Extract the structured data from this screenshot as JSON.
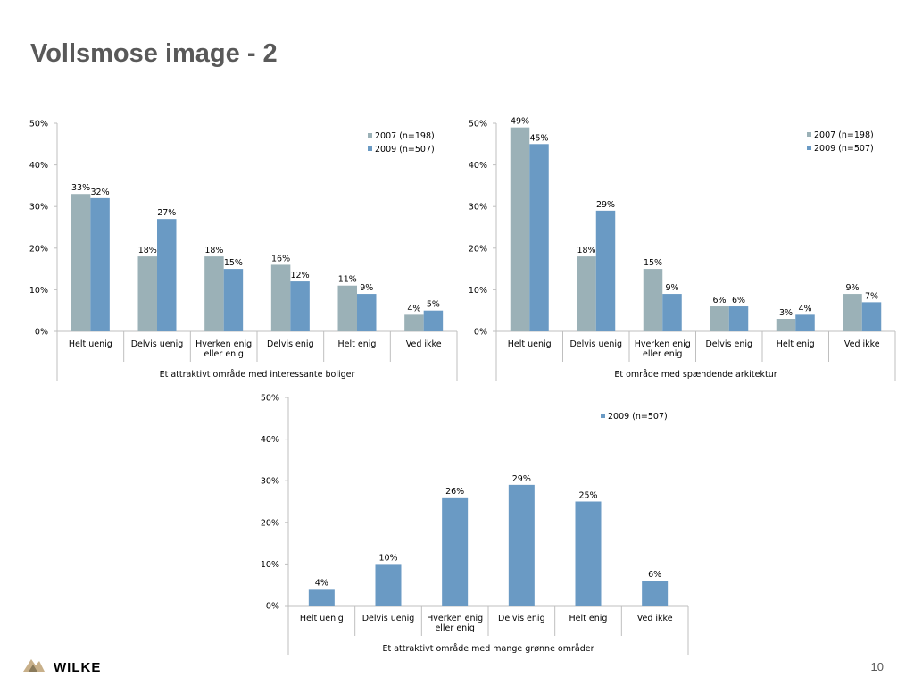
{
  "slide": {
    "title": "Vollsmose image - 2",
    "page_number": "10",
    "logo_text": "WILKE"
  },
  "colors": {
    "series_2007": "#9bb1b7",
    "series_2009": "#6a9ac4",
    "axis": "#bfbfbf",
    "text": "#000000",
    "title": "#595959"
  },
  "chart_data": [
    {
      "type": "bar",
      "title": "",
      "xlabel": "Et attraktivt område med interessante boliger",
      "ylabel": "",
      "ylim": [
        0,
        50
      ],
      "yticks": [
        "0%",
        "10%",
        "20%",
        "30%",
        "40%",
        "50%"
      ],
      "categories": [
        "Helt uenig",
        "Delvis uenig",
        "Hverken enig eller enig",
        "Delvis enig",
        "Helt enig",
        "Ved ikke"
      ],
      "series": [
        {
          "name": "2007 (n=198)",
          "values": [
            33,
            18,
            18,
            16,
            11,
            4
          ],
          "labels": [
            "33%",
            "18%",
            "18%",
            "16%",
            "11%",
            "4%"
          ]
        },
        {
          "name": "2009 (n=507)",
          "values": [
            32,
            27,
            15,
            12,
            9,
            5
          ],
          "labels": [
            "32%",
            "27%",
            "15%",
            "12%",
            "9%",
            "5%"
          ]
        }
      ],
      "legend": "top-right",
      "grid": false
    },
    {
      "type": "bar",
      "title": "",
      "xlabel": "Et område med spændende arkitektur",
      "ylabel": "",
      "ylim": [
        0,
        50
      ],
      "yticks": [
        "0%",
        "10%",
        "20%",
        "30%",
        "40%",
        "50%"
      ],
      "categories": [
        "Helt uenig",
        "Delvis uenig",
        "Hverken enig eller enig",
        "Delvis enig",
        "Helt enig",
        "Ved ikke"
      ],
      "series": [
        {
          "name": "2007 (n=198)",
          "values": [
            49,
            18,
            15,
            6,
            3,
            9
          ],
          "labels": [
            "49%",
            "18%",
            "15%",
            "6%",
            "3%",
            "9%"
          ]
        },
        {
          "name": "2009 (n=507)",
          "values": [
            45,
            29,
            9,
            6,
            4,
            7
          ],
          "labels": [
            "45%",
            "29%",
            "9%",
            "6%",
            "4%",
            "7%"
          ]
        }
      ],
      "legend": "top-right",
      "grid": false
    },
    {
      "type": "bar",
      "title": "",
      "xlabel": "Et attraktivt område med mange grønne områder",
      "ylabel": "",
      "ylim": [
        0,
        50
      ],
      "yticks": [
        "0%",
        "10%",
        "20%",
        "30%",
        "40%",
        "50%"
      ],
      "categories": [
        "Helt uenig",
        "Delvis uenig",
        "Hverken enig eller enig",
        "Delvis enig",
        "Helt enig",
        "Ved ikke"
      ],
      "series": [
        {
          "name": "2009 (n=507)",
          "values": [
            4,
            10,
            26,
            29,
            25,
            6
          ],
          "labels": [
            "4%",
            "10%",
            "26%",
            "29%",
            "25%",
            "6%"
          ]
        }
      ],
      "legend": "top-right",
      "grid": false
    }
  ]
}
